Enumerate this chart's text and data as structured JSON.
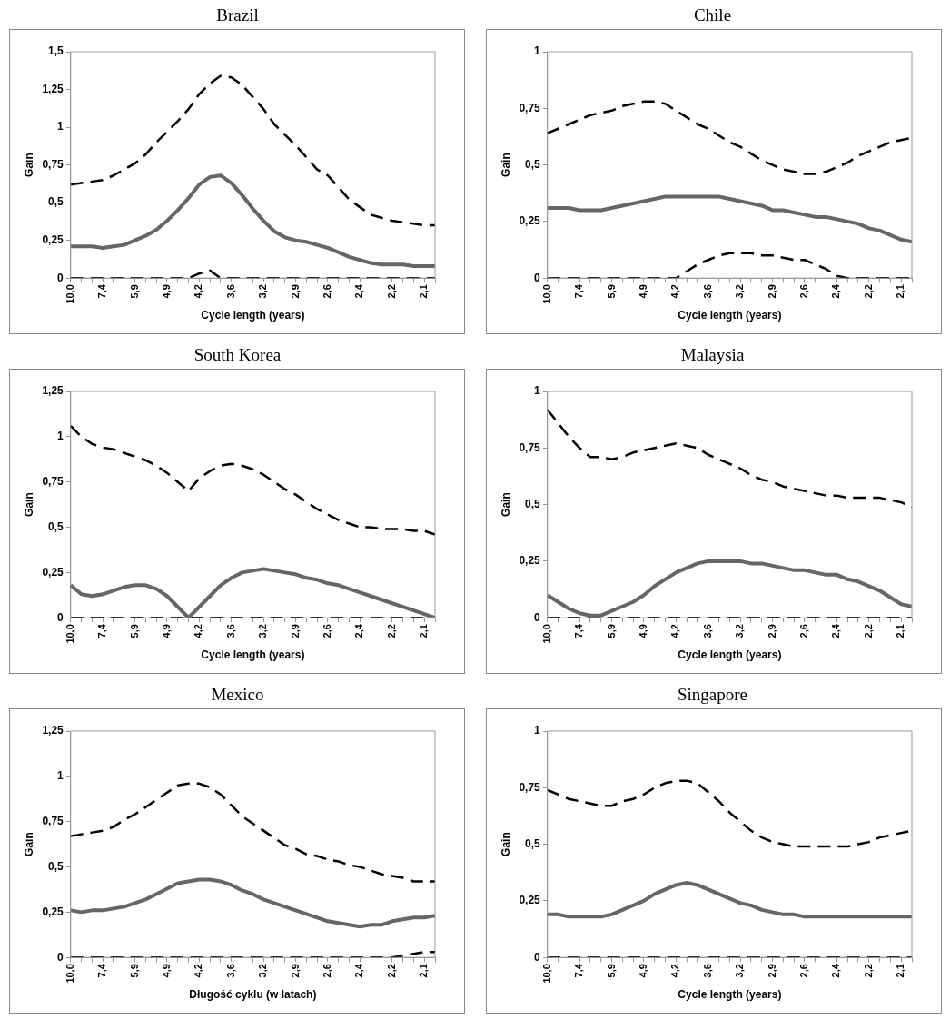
{
  "chart_data": [
    {
      "type": "line",
      "title": "Brazil",
      "xlabel": "Cycle length (years)",
      "ylabel": "Gain",
      "marker": "none",
      "categories": [
        "10,0",
        null,
        null,
        "7,4",
        null,
        null,
        "5,9",
        null,
        null,
        "4,9",
        null,
        null,
        "4,2",
        null,
        null,
        "3,6",
        null,
        null,
        "3,2",
        null,
        null,
        "2,9",
        null,
        null,
        "2,6",
        null,
        null,
        "2,4",
        null,
        null,
        "2,2",
        null,
        null,
        "2,1",
        null
      ],
      "ylim": [
        0,
        1.5
      ],
      "yticks": [
        {
          "value": 0,
          "label": "0"
        },
        {
          "value": 0.25,
          "label": "0,25"
        },
        {
          "value": 0.5,
          "label": "0,5"
        },
        {
          "value": 0.75,
          "label": "0,75"
        },
        {
          "value": 1,
          "label": "1"
        },
        {
          "value": 1.25,
          "label": "1,25"
        },
        {
          "value": 1.5,
          "label": "1,5"
        }
      ],
      "series": [
        {
          "color": "#000000",
          "line_style": "dashed",
          "values": [
            0.62,
            0.63,
            0.64,
            0.65,
            0.68,
            0.72,
            0.76,
            0.82,
            0.9,
            0.97,
            1.04,
            1.12,
            1.22,
            1.29,
            1.34,
            1.33,
            1.28,
            1.2,
            1.12,
            1.02,
            0.95,
            0.88,
            0.8,
            0.72,
            0.68,
            0.6,
            0.52,
            0.47,
            0.42,
            0.4,
            0.38,
            0.37,
            0.36,
            0.35,
            0.35
          ]
        },
        {
          "color": "#666666",
          "line_style": "solid",
          "values": [
            0.21,
            0.21,
            0.21,
            0.2,
            0.21,
            0.22,
            0.25,
            0.28,
            0.32,
            0.38,
            0.45,
            0.53,
            0.62,
            0.67,
            0.68,
            0.63,
            0.55,
            0.46,
            0.38,
            0.31,
            0.27,
            0.25,
            0.24,
            0.22,
            0.2,
            0.17,
            0.14,
            0.12,
            0.1,
            0.09,
            0.09,
            0.09,
            0.08,
            0.08,
            0.08
          ]
        },
        {
          "color": "#000000",
          "line_style": "dashed",
          "values": [
            0,
            0,
            0,
            0,
            0,
            0,
            0,
            0,
            0,
            0,
            0,
            0,
            0.03,
            0.05,
            0,
            0,
            0,
            0,
            0,
            0,
            0,
            0,
            0,
            0,
            0,
            0,
            0,
            0,
            0,
            0,
            0,
            0,
            0,
            0,
            0
          ]
        }
      ]
    },
    {
      "type": "line",
      "title": "Chile",
      "xlabel": "Cycle length (years)",
      "ylabel": "Gain",
      "marker": "none",
      "categories": [
        "10,0",
        null,
        null,
        "7,4",
        null,
        null,
        "5,9",
        null,
        null,
        "4,9",
        null,
        null,
        "4,2",
        null,
        null,
        "3,6",
        null,
        null,
        "3,2",
        null,
        null,
        "2,9",
        null,
        null,
        "2,6",
        null,
        null,
        "2,4",
        null,
        null,
        "2,2",
        null,
        null,
        "2,1",
        null
      ],
      "ylim": [
        0,
        1
      ],
      "yticks": [
        {
          "value": 0,
          "label": "0"
        },
        {
          "value": 0.25,
          "label": "0,25"
        },
        {
          "value": 0.5,
          "label": "0,5"
        },
        {
          "value": 0.75,
          "label": "0,75"
        },
        {
          "value": 1,
          "label": "1"
        }
      ],
      "series": [
        {
          "color": "#000000",
          "line_style": "dashed",
          "values": [
            0.64,
            0.66,
            0.68,
            0.7,
            0.72,
            0.73,
            0.74,
            0.76,
            0.77,
            0.78,
            0.78,
            0.77,
            0.74,
            0.71,
            0.68,
            0.66,
            0.63,
            0.6,
            0.58,
            0.55,
            0.52,
            0.5,
            0.48,
            0.47,
            0.46,
            0.46,
            0.47,
            0.49,
            0.51,
            0.54,
            0.56,
            0.58,
            0.6,
            0.61,
            0.62
          ]
        },
        {
          "color": "#666666",
          "line_style": "solid",
          "values": [
            0.31,
            0.31,
            0.31,
            0.3,
            0.3,
            0.3,
            0.31,
            0.32,
            0.33,
            0.34,
            0.35,
            0.36,
            0.36,
            0.36,
            0.36,
            0.36,
            0.36,
            0.35,
            0.34,
            0.33,
            0.32,
            0.3,
            0.3,
            0.29,
            0.28,
            0.27,
            0.27,
            0.26,
            0.25,
            0.24,
            0.22,
            0.21,
            0.19,
            0.17,
            0.16
          ]
        },
        {
          "color": "#000000",
          "line_style": "dashed",
          "values": [
            0,
            0,
            0,
            0,
            0,
            0,
            0,
            0,
            0,
            0,
            0,
            0,
            0,
            0.03,
            0.06,
            0.08,
            0.1,
            0.11,
            0.11,
            0.11,
            0.1,
            0.1,
            0.09,
            0.08,
            0.08,
            0.06,
            0.04,
            0.01,
            0,
            0,
            0,
            0,
            0,
            0,
            0
          ]
        }
      ]
    },
    {
      "type": "line",
      "title": "South Korea",
      "xlabel": "Cycle length (years)",
      "ylabel": "Gain",
      "marker": "none",
      "categories": [
        "10,0",
        null,
        null,
        "7,4",
        null,
        null,
        "5,9",
        null,
        null,
        "4,9",
        null,
        null,
        "4,2",
        null,
        null,
        "3,6",
        null,
        null,
        "3,2",
        null,
        null,
        "2,9",
        null,
        null,
        "2,6",
        null,
        null,
        "2,4",
        null,
        null,
        "2,2",
        null,
        null,
        "2,1",
        null
      ],
      "ylim": [
        0,
        1.25
      ],
      "yticks": [
        {
          "value": 0,
          "label": "0"
        },
        {
          "value": 0.25,
          "label": "0,25"
        },
        {
          "value": 0.5,
          "label": "0,5"
        },
        {
          "value": 0.75,
          "label": "0,75"
        },
        {
          "value": 1,
          "label": "1"
        },
        {
          "value": 1.25,
          "label": "1,25"
        }
      ],
      "series": [
        {
          "color": "#000000",
          "line_style": "dashed",
          "values": [
            1.06,
            1.0,
            0.96,
            0.94,
            0.93,
            0.91,
            0.89,
            0.87,
            0.84,
            0.8,
            0.75,
            0.7,
            0.77,
            0.81,
            0.84,
            0.85,
            0.84,
            0.82,
            0.79,
            0.75,
            0.71,
            0.68,
            0.64,
            0.6,
            0.57,
            0.54,
            0.52,
            0.5,
            0.5,
            0.49,
            0.49,
            0.49,
            0.48,
            0.48,
            0.46
          ]
        },
        {
          "color": "#666666",
          "line_style": "solid",
          "values": [
            0.18,
            0.13,
            0.12,
            0.13,
            0.15,
            0.17,
            0.18,
            0.18,
            0.16,
            0.12,
            0.06,
            0,
            0.06,
            0.12,
            0.18,
            0.22,
            0.25,
            0.26,
            0.27,
            0.26,
            0.25,
            0.24,
            0.22,
            0.21,
            0.19,
            0.18,
            0.16,
            0.14,
            0.12,
            0.1,
            0.08,
            0.06,
            0.04,
            0.02,
            0
          ]
        },
        {
          "color": "#000000",
          "line_style": "dashed",
          "values": [
            0,
            0,
            0,
            0,
            0,
            0,
            0,
            0,
            0,
            0,
            0,
            0,
            0,
            0,
            0,
            0,
            0,
            0,
            0,
            0,
            0,
            0,
            0,
            0,
            0,
            0,
            0,
            0,
            0,
            0,
            0,
            0,
            0,
            0,
            0
          ]
        }
      ]
    },
    {
      "type": "line",
      "title": "Malaysia",
      "xlabel": "Cycle length (years)",
      "ylabel": "Gain",
      "marker": "none",
      "categories": [
        "10,0",
        null,
        null,
        "7,4",
        null,
        null,
        "5,9",
        null,
        null,
        "4,9",
        null,
        null,
        "4,2",
        null,
        null,
        "3,6",
        null,
        null,
        "3,2",
        null,
        null,
        "2,9",
        null,
        null,
        "2,6",
        null,
        null,
        "2,4",
        null,
        null,
        "2,2",
        null,
        null,
        "2,1",
        null
      ],
      "ylim": [
        0,
        1
      ],
      "yticks": [
        {
          "value": 0,
          "label": "0"
        },
        {
          "value": 0.25,
          "label": "0,25"
        },
        {
          "value": 0.5,
          "label": "0,5"
        },
        {
          "value": 0.75,
          "label": "0,75"
        },
        {
          "value": 1,
          "label": "1"
        }
      ],
      "series": [
        {
          "color": "#000000",
          "line_style": "dashed",
          "values": [
            0.92,
            0.86,
            0.8,
            0.75,
            0.71,
            0.71,
            0.7,
            0.71,
            0.73,
            0.74,
            0.75,
            0.76,
            0.77,
            0.76,
            0.75,
            0.72,
            0.7,
            0.68,
            0.66,
            0.63,
            0.61,
            0.6,
            0.58,
            0.57,
            0.56,
            0.55,
            0.54,
            0.54,
            0.53,
            0.53,
            0.53,
            0.53,
            0.52,
            0.51,
            0.49
          ]
        },
        {
          "color": "#666666",
          "line_style": "solid",
          "values": [
            0.1,
            0.07,
            0.04,
            0.02,
            0.01,
            0.01,
            0.03,
            0.05,
            0.07,
            0.1,
            0.14,
            0.17,
            0.2,
            0.22,
            0.24,
            0.25,
            0.25,
            0.25,
            0.25,
            0.24,
            0.24,
            0.23,
            0.22,
            0.21,
            0.21,
            0.2,
            0.19,
            0.19,
            0.17,
            0.16,
            0.14,
            0.12,
            0.09,
            0.06,
            0.05
          ]
        },
        {
          "color": "#000000",
          "line_style": "dashed",
          "values": [
            0,
            0,
            0,
            0,
            0,
            0,
            0,
            0,
            0,
            0,
            0,
            0,
            0,
            0,
            0,
            0,
            0,
            0,
            0,
            0,
            0,
            0,
            0,
            0,
            0,
            0,
            0,
            0,
            0,
            0,
            0,
            0,
            0,
            0,
            0
          ]
        }
      ]
    },
    {
      "type": "line",
      "title": "Mexico",
      "xlabel": "Długość cyklu (w latach)",
      "ylabel": "Gain",
      "marker": "none",
      "categories": [
        "10,0",
        null,
        null,
        "7,4",
        null,
        null,
        "5,9",
        null,
        null,
        "4,9",
        null,
        null,
        "4,2",
        null,
        null,
        "3,6",
        null,
        null,
        "3,2",
        null,
        null,
        "2,9",
        null,
        null,
        "2,6",
        null,
        null,
        "2,4",
        null,
        null,
        "2,2",
        null,
        null,
        "2,1",
        null
      ],
      "ylim": [
        0,
        1.25
      ],
      "yticks": [
        {
          "value": 0,
          "label": "0"
        },
        {
          "value": 0.25,
          "label": "0,25"
        },
        {
          "value": 0.5,
          "label": "0,5"
        },
        {
          "value": 0.75,
          "label": "0,75"
        },
        {
          "value": 1,
          "label": "1"
        },
        {
          "value": 1.25,
          "label": "1,25"
        }
      ],
      "series": [
        {
          "color": "#000000",
          "line_style": "dashed",
          "values": [
            0.67,
            0.68,
            0.69,
            0.7,
            0.72,
            0.76,
            0.79,
            0.83,
            0.87,
            0.91,
            0.95,
            0.96,
            0.96,
            0.94,
            0.9,
            0.84,
            0.78,
            0.74,
            0.7,
            0.66,
            0.62,
            0.6,
            0.57,
            0.56,
            0.54,
            0.53,
            0.51,
            0.5,
            0.48,
            0.46,
            0.45,
            0.44,
            0.42,
            0.42,
            0.42
          ]
        },
        {
          "color": "#666666",
          "line_style": "solid",
          "values": [
            0.26,
            0.25,
            0.26,
            0.26,
            0.27,
            0.28,
            0.3,
            0.32,
            0.35,
            0.38,
            0.41,
            0.42,
            0.43,
            0.43,
            0.42,
            0.4,
            0.37,
            0.35,
            0.32,
            0.3,
            0.28,
            0.26,
            0.24,
            0.22,
            0.2,
            0.19,
            0.18,
            0.17,
            0.18,
            0.18,
            0.2,
            0.21,
            0.22,
            0.22,
            0.23
          ]
        },
        {
          "color": "#000000",
          "line_style": "dashed",
          "values": [
            0,
            0,
            0,
            0,
            0,
            0,
            0,
            0,
            0,
            0,
            0,
            0,
            0,
            0,
            0,
            0,
            0,
            0,
            0,
            0,
            0,
            0,
            0,
            0,
            0,
            0,
            0,
            0,
            0,
            0,
            0,
            0.01,
            0.02,
            0.03,
            0.03
          ]
        }
      ]
    },
    {
      "type": "line",
      "title": "Singapore",
      "xlabel": "Cycle length (years)",
      "ylabel": "Gain",
      "marker": "none",
      "categories": [
        "10,0",
        null,
        null,
        "7,4",
        null,
        null,
        "5,9",
        null,
        null,
        "4,9",
        null,
        null,
        "4,2",
        null,
        null,
        "3,6",
        null,
        null,
        "3,2",
        null,
        null,
        "2,9",
        null,
        null,
        "2,6",
        null,
        null,
        "2,4",
        null,
        null,
        "2,2",
        null,
        null,
        "2,1",
        null
      ],
      "ylim": [
        0,
        1
      ],
      "yticks": [
        {
          "value": 0,
          "label": "0"
        },
        {
          "value": 0.25,
          "label": "0,25"
        },
        {
          "value": 0.5,
          "label": "0,5"
        },
        {
          "value": 0.75,
          "label": "0,75"
        },
        {
          "value": 1,
          "label": "1"
        }
      ],
      "series": [
        {
          "color": "#000000",
          "line_style": "dashed",
          "values": [
            0.74,
            0.72,
            0.7,
            0.69,
            0.68,
            0.67,
            0.67,
            0.69,
            0.7,
            0.72,
            0.75,
            0.77,
            0.78,
            0.78,
            0.77,
            0.73,
            0.69,
            0.64,
            0.6,
            0.56,
            0.53,
            0.51,
            0.5,
            0.49,
            0.49,
            0.49,
            0.49,
            0.49,
            0.49,
            0.5,
            0.51,
            0.53,
            0.54,
            0.55,
            0.56
          ]
        },
        {
          "color": "#666666",
          "line_style": "solid",
          "values": [
            0.19,
            0.19,
            0.18,
            0.18,
            0.18,
            0.18,
            0.19,
            0.21,
            0.23,
            0.25,
            0.28,
            0.3,
            0.32,
            0.33,
            0.32,
            0.3,
            0.28,
            0.26,
            0.24,
            0.23,
            0.21,
            0.2,
            0.19,
            0.19,
            0.18,
            0.18,
            0.18,
            0.18,
            0.18,
            0.18,
            0.18,
            0.18,
            0.18,
            0.18,
            0.18
          ]
        },
        {
          "color": "#000000",
          "line_style": "dashed",
          "values": [
            0,
            0,
            0,
            0,
            0,
            0,
            0,
            0,
            0,
            0,
            0,
            0,
            0,
            0,
            0,
            0,
            0,
            0,
            0,
            0,
            0,
            0,
            0,
            0,
            0,
            0,
            0,
            0,
            0,
            0,
            0,
            0,
            0,
            0,
            0
          ]
        }
      ]
    }
  ]
}
